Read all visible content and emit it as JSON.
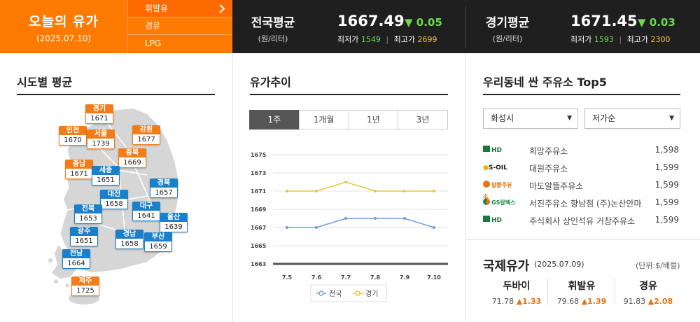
{
  "header": {
    "title": "오늘의 유가",
    "date": "(2025.07.10)",
    "fuel_tabs": [
      "휘발유",
      "경유",
      "LPG"
    ],
    "national": {
      "name": "전국평균",
      "unit": "(원/리터)",
      "price": "1667.49",
      "change": "▼ 0.05",
      "min_label": "최저가",
      "min": "1549",
      "max_label": "최고가",
      "max": "2699"
    },
    "gyeonggi": {
      "name": "경기평균",
      "unit": "(원/리터)",
      "price": "1671.45",
      "change": "▼ 0.03",
      "min_label": "최저가",
      "min": "1593",
      "max_label": "최고가",
      "max": "2300"
    }
  },
  "regional": {
    "title": "시도별 평균",
    "regions": [
      {
        "name": "경기",
        "price": "1671",
        "color": "orange"
      },
      {
        "name": "인천",
        "price": "1670",
        "color": "orange"
      },
      {
        "name": "서울",
        "price": "1739",
        "color": "orange"
      },
      {
        "name": "강원",
        "price": "1677",
        "color": "orange"
      },
      {
        "name": "충북",
        "price": "1669",
        "color": "orange"
      },
      {
        "name": "충남",
        "price": "1671",
        "color": "orange"
      },
      {
        "name": "세종",
        "price": "1651",
        "color": "blue"
      },
      {
        "name": "경북",
        "price": "1657",
        "color": "blue"
      },
      {
        "name": "대전",
        "price": "1658",
        "color": "blue"
      },
      {
        "name": "전북",
        "price": "1653",
        "color": "blue"
      },
      {
        "name": "대구",
        "price": "1641",
        "color": "blue"
      },
      {
        "name": "울산",
        "price": "1639",
        "color": "blue"
      },
      {
        "name": "광주",
        "price": "1651",
        "color": "blue"
      },
      {
        "name": "경남",
        "price": "1658",
        "color": "blue"
      },
      {
        "name": "부산",
        "price": "1659",
        "color": "blue"
      },
      {
        "name": "전남",
        "price": "1664",
        "color": "blue"
      },
      {
        "name": "제주",
        "price": "1725",
        "color": "orange"
      }
    ]
  },
  "trend": {
    "title": "유가추이",
    "period_tabs": [
      "1주",
      "1개월",
      "1년",
      "3년"
    ],
    "active_tab": 0
  },
  "chart_data": {
    "type": "line",
    "x": [
      "7.5",
      "7.6",
      "7.7",
      "7.8",
      "7.9",
      "7.10"
    ],
    "series": [
      {
        "name": "전국",
        "values": [
          1667,
          1667,
          1668,
          1668,
          1668,
          1667
        ],
        "color": "#6f9fd8"
      },
      {
        "name": "경기",
        "values": [
          1671,
          1671,
          1672,
          1671,
          1671,
          1671
        ],
        "color": "#e8c53a"
      }
    ],
    "yticks": [
      "1675",
      "1673",
      "1671",
      "1669",
      "1667",
      "1665",
      "1663"
    ],
    "ylim": [
      1663,
      1675
    ],
    "grid": true,
    "legend": "bottom"
  },
  "stations": {
    "title": "우리동네 싼 주유소 Top5",
    "region_select": "화성시",
    "sort_select": "저가순",
    "items": [
      {
        "logo": "HD",
        "logo_color": "#1a7a3c",
        "name": "희망주유소",
        "price": "1,598"
      },
      {
        "logo": "S-OIL",
        "logo_color": "#f2b400",
        "name": "대원주유소",
        "price": "1,599"
      },
      {
        "logo": "알뜰주유소",
        "logo_color": "#e8730c",
        "name": "마도알뜰주유소",
        "price": "1,599"
      },
      {
        "logo": "GS칼텍스",
        "logo_color": "#1a8a4c",
        "name": "서진주유소 향남점 (주)논산안마",
        "price": "1,599"
      },
      {
        "logo": "HD",
        "logo_color": "#1a7a3c",
        "name": "주식회사 상인석유 거창주유소",
        "price": "1,599"
      }
    ]
  },
  "international": {
    "title": "국제유가",
    "date": "(2025.07.09)",
    "unit": "(단위:$/배럴)",
    "items": [
      {
        "name": "두바이",
        "value": "71.78",
        "change": "▲1.33"
      },
      {
        "name": "휘발유",
        "value": "79.68",
        "change": "▲1.39"
      },
      {
        "name": "경유",
        "value": "91.83",
        "change": "▲2.08"
      }
    ]
  }
}
